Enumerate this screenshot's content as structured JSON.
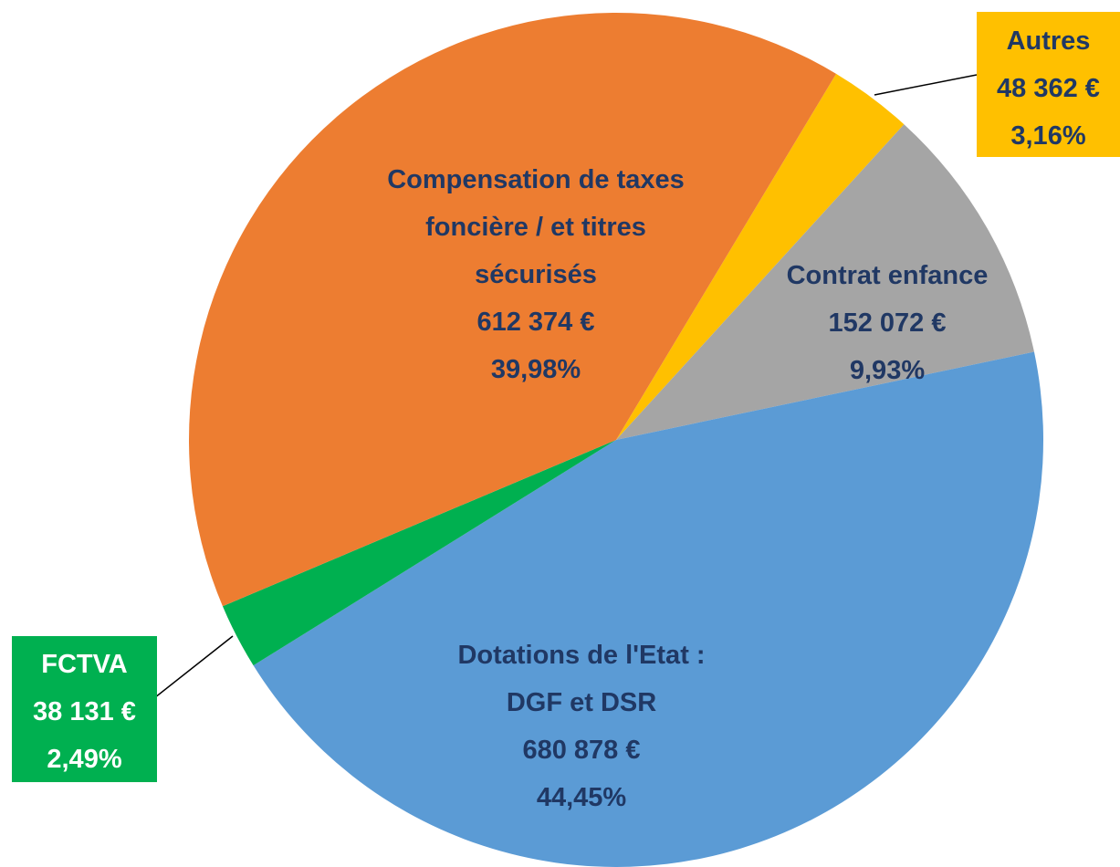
{
  "chart_data": {
    "type": "pie",
    "categories": [
      "Autres",
      "Contrat enfance",
      "Dotations de l'Etat : DGF et DSR",
      "FCTVA",
      "Compensation de taxes foncière / et titres sécurisés"
    ],
    "values": [
      48362,
      152072,
      680878,
      38131,
      612374
    ],
    "value_labels": [
      "48 362 €",
      "152 072 €",
      "680 878 €",
      "38 131 €",
      "612 374 €"
    ],
    "percentages": [
      3.16,
      9.93,
      44.45,
      2.49,
      39.98
    ],
    "percentage_labels": [
      "3,16%",
      "9,93%",
      "44,45%",
      "2,49%",
      "39,98%"
    ],
    "colors": [
      "#FFC000",
      "#A5A5A5",
      "#5B9BD5",
      "#00B050",
      "#ED7D31"
    ]
  }
}
